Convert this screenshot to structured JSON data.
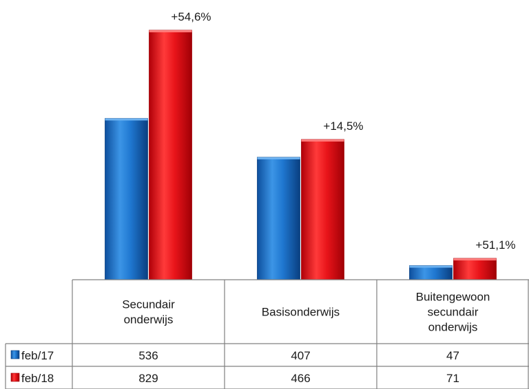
{
  "chart_data": {
    "type": "bar",
    "categories": [
      [
        "Secundair",
        "onderwijs"
      ],
      [
        "Basisonderwijs"
      ],
      [
        "Buitengewoon",
        "secundair",
        "onderwijs"
      ]
    ],
    "series": [
      {
        "name": "feb/17",
        "color": "#1f77d0",
        "values": [
          536,
          407,
          47
        ]
      },
      {
        "name": "feb/18",
        "color": "#e8141a",
        "values": [
          829,
          466,
          71
        ]
      }
    ],
    "annotations": [
      "+54,6%",
      "+14,5%",
      "+51,1%"
    ],
    "ylim": [
      0,
      829
    ],
    "grid": false,
    "legend": "data table"
  }
}
